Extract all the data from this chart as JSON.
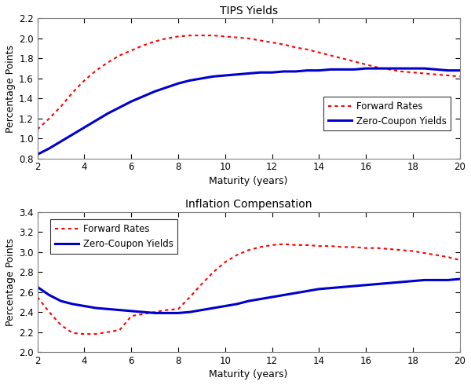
{
  "title1": "TIPS Yields",
  "title2": "Inflation Compensation",
  "xlabel": "Maturity (years)",
  "ylabel": "Percentage Points",
  "legend_forward": "Forward Rates",
  "legend_zero": "Zero-Coupon Yields",
  "line_color_forward": "#FF0000",
  "line_color_zero": "#0000CC",
  "panel1": {
    "xlim": [
      2,
      20
    ],
    "ylim": [
      0.8,
      2.2
    ],
    "yticks": [
      0.8,
      1.0,
      1.2,
      1.4,
      1.6,
      1.8,
      2.0,
      2.2
    ],
    "xticks": [
      2,
      4,
      6,
      8,
      10,
      12,
      14,
      16,
      18,
      20
    ],
    "zero_x": [
      2,
      2.5,
      3,
      3.5,
      4,
      4.5,
      5,
      5.5,
      6,
      6.5,
      7,
      7.5,
      8,
      8.5,
      9,
      9.5,
      10,
      10.5,
      11,
      11.5,
      12,
      12.5,
      13,
      13.5,
      14,
      14.5,
      15,
      15.5,
      16,
      16.5,
      17,
      17.5,
      18,
      18.5,
      19,
      19.5,
      20
    ],
    "zero_y": [
      0.84,
      0.9,
      0.97,
      1.04,
      1.11,
      1.18,
      1.25,
      1.31,
      1.37,
      1.42,
      1.47,
      1.51,
      1.55,
      1.58,
      1.6,
      1.62,
      1.63,
      1.64,
      1.65,
      1.66,
      1.66,
      1.67,
      1.67,
      1.68,
      1.68,
      1.69,
      1.69,
      1.69,
      1.7,
      1.7,
      1.7,
      1.7,
      1.7,
      1.7,
      1.69,
      1.68,
      1.68
    ],
    "fwd_x": [
      2,
      2.5,
      3,
      3.5,
      4,
      4.5,
      5,
      5.5,
      6,
      6.5,
      7,
      7.5,
      8,
      8.5,
      9,
      9.5,
      10,
      10.5,
      11,
      11.5,
      12,
      12.5,
      13,
      13.5,
      14,
      14.5,
      15,
      15.5,
      16,
      16.5,
      17,
      17.5,
      18,
      18.5,
      19,
      19.5,
      20
    ],
    "fwd_y": [
      1.09,
      1.2,
      1.32,
      1.46,
      1.58,
      1.68,
      1.76,
      1.83,
      1.88,
      1.93,
      1.97,
      2.0,
      2.02,
      2.03,
      2.03,
      2.03,
      2.02,
      2.01,
      2.0,
      1.98,
      1.96,
      1.94,
      1.91,
      1.89,
      1.86,
      1.83,
      1.8,
      1.77,
      1.74,
      1.71,
      1.69,
      1.67,
      1.66,
      1.65,
      1.64,
      1.63,
      1.62
    ]
  },
  "panel2": {
    "xlim": [
      2,
      20
    ],
    "ylim": [
      2.0,
      3.4
    ],
    "yticks": [
      2.0,
      2.2,
      2.4,
      2.6,
      2.8,
      3.0,
      3.2,
      3.4
    ],
    "xticks": [
      2,
      4,
      6,
      8,
      10,
      12,
      14,
      16,
      18,
      20
    ],
    "zero_x": [
      2,
      2.5,
      3,
      3.5,
      4,
      4.5,
      5,
      5.5,
      6,
      6.5,
      7,
      7.5,
      8,
      8.5,
      9,
      9.5,
      10,
      10.5,
      11,
      11.5,
      12,
      12.5,
      13,
      13.5,
      14,
      14.5,
      15,
      15.5,
      16,
      16.5,
      17,
      17.5,
      18,
      18.5,
      19,
      19.5,
      20
    ],
    "zero_y": [
      2.65,
      2.57,
      2.51,
      2.48,
      2.46,
      2.44,
      2.43,
      2.42,
      2.41,
      2.4,
      2.39,
      2.39,
      2.39,
      2.4,
      2.42,
      2.44,
      2.46,
      2.48,
      2.51,
      2.53,
      2.55,
      2.57,
      2.59,
      2.61,
      2.63,
      2.64,
      2.65,
      2.66,
      2.67,
      2.68,
      2.69,
      2.7,
      2.71,
      2.72,
      2.72,
      2.72,
      2.73
    ],
    "fwd_x": [
      2,
      2.5,
      3,
      3.5,
      4,
      4.5,
      5,
      5.5,
      6,
      6.5,
      7,
      7.5,
      8,
      8.5,
      9,
      9.5,
      10,
      10.5,
      11,
      11.5,
      12,
      12.5,
      13,
      13.5,
      14,
      14.5,
      15,
      15.5,
      16,
      16.5,
      17,
      17.5,
      18,
      18.5,
      19,
      19.5,
      20
    ],
    "fwd_y": [
      2.55,
      2.4,
      2.27,
      2.19,
      2.18,
      2.18,
      2.2,
      2.22,
      2.36,
      2.38,
      2.4,
      2.42,
      2.43,
      2.55,
      2.68,
      2.8,
      2.9,
      2.97,
      3.02,
      3.05,
      3.07,
      3.08,
      3.07,
      3.07,
      3.06,
      3.06,
      3.05,
      3.05,
      3.04,
      3.04,
      3.03,
      3.02,
      3.01,
      2.99,
      2.97,
      2.95,
      2.92
    ]
  },
  "background_color": "#FFFFFF",
  "fig_facecolor": "#FFFFFF",
  "spine_color": "#808080",
  "tick_color": "#000000"
}
